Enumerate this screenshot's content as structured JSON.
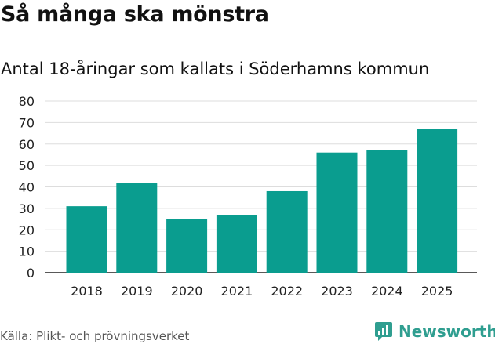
{
  "chart_data": {
    "type": "bar",
    "title": "Så många ska mönstra",
    "subtitle": "Antal 18-åringar som kallats i Söderhamns kommun",
    "categories": [
      "2018",
      "2019",
      "2020",
      "2021",
      "2022",
      "2023",
      "2024",
      "2025"
    ],
    "values": [
      31,
      42,
      25,
      27,
      38,
      56,
      57,
      67
    ],
    "ylim": [
      0,
      80
    ],
    "yticks": [
      0,
      10,
      20,
      30,
      40,
      50,
      60,
      70,
      80
    ],
    "xlabel": "",
    "ylabel": "",
    "grid": true,
    "bar_color": "#0a9d8f"
  },
  "footer": {
    "source": "Källa: Plikt- och prövningsverket",
    "brand": "Newsworthy"
  },
  "colors": {
    "brand": "#2f9e90",
    "grid": "#dddddd"
  }
}
